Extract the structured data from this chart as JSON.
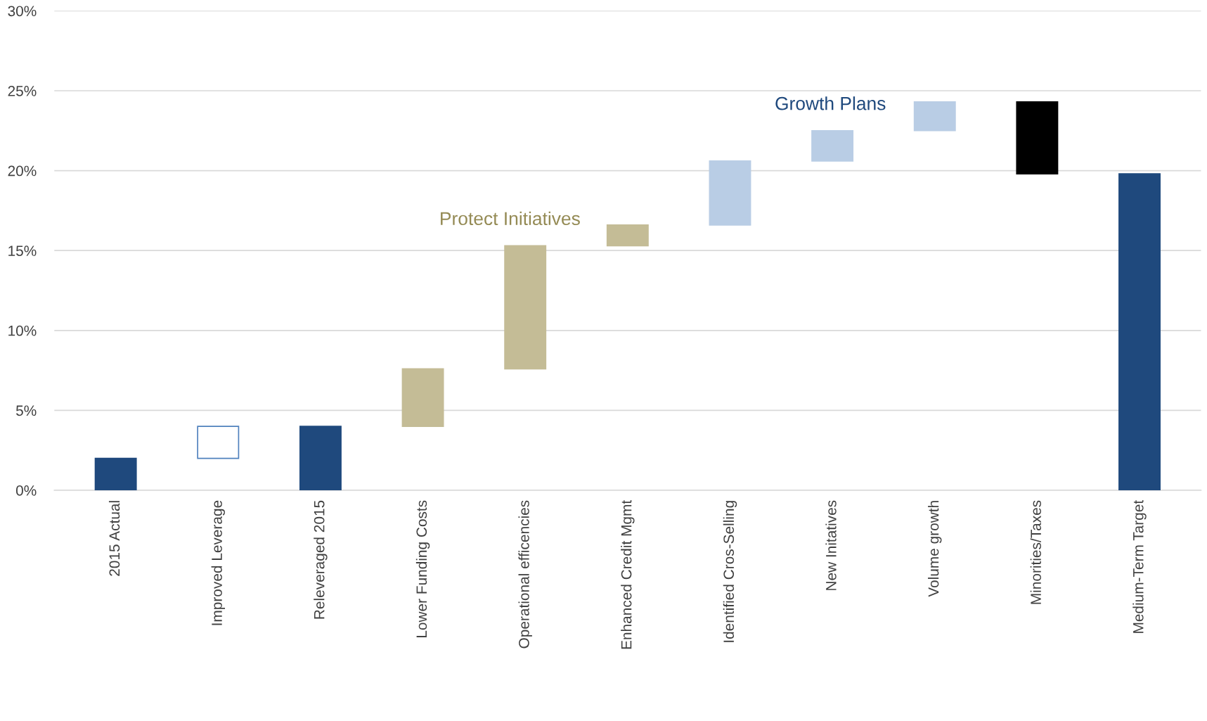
{
  "chart_data": {
    "type": "bar",
    "categories": [
      "2015 Actual",
      "Improved Leverage",
      "Releveraged 2015",
      "Lower Funding Costs",
      "Operational efficencies",
      "Enhanced Credit Mgmt",
      "Identified Cros-Selling",
      "New Initatives",
      "Volume growth",
      "Minorities/Taxes",
      "Medium-Term Target"
    ],
    "values": [
      2.0,
      2.0,
      4.0,
      3.6,
      7.7,
      1.3,
      4.0,
      1.9,
      1.8,
      -4.5,
      19.8
    ],
    "base": [
      0,
      2.0,
      0,
      4.0,
      7.6,
      15.3,
      16.6,
      20.6,
      22.5,
      24.3,
      0
    ],
    "colors": [
      "#1f497d",
      "#ffffff",
      "#1f497d",
      "#c4bc96",
      "#c4bc96",
      "#c4bc96",
      "#b9cde5",
      "#b9cde5",
      "#b9cde5",
      "#000000",
      "#1f497d"
    ],
    "ylim": [
      0,
      30
    ],
    "yticks": [
      {
        "value": 0,
        "label": "0%"
      },
      {
        "value": 5,
        "label": "5%"
      },
      {
        "value": 10,
        "label": "10%"
      },
      {
        "value": 15,
        "label": "15%"
      },
      {
        "value": 20,
        "label": "20%"
      },
      {
        "value": 25,
        "label": "25%"
      },
      {
        "value": 30,
        "label": "30%"
      }
    ],
    "grid": "y",
    "annotations": [
      "Protect Initiatives",
      "Growth Plans"
    ],
    "legend": false
  }
}
